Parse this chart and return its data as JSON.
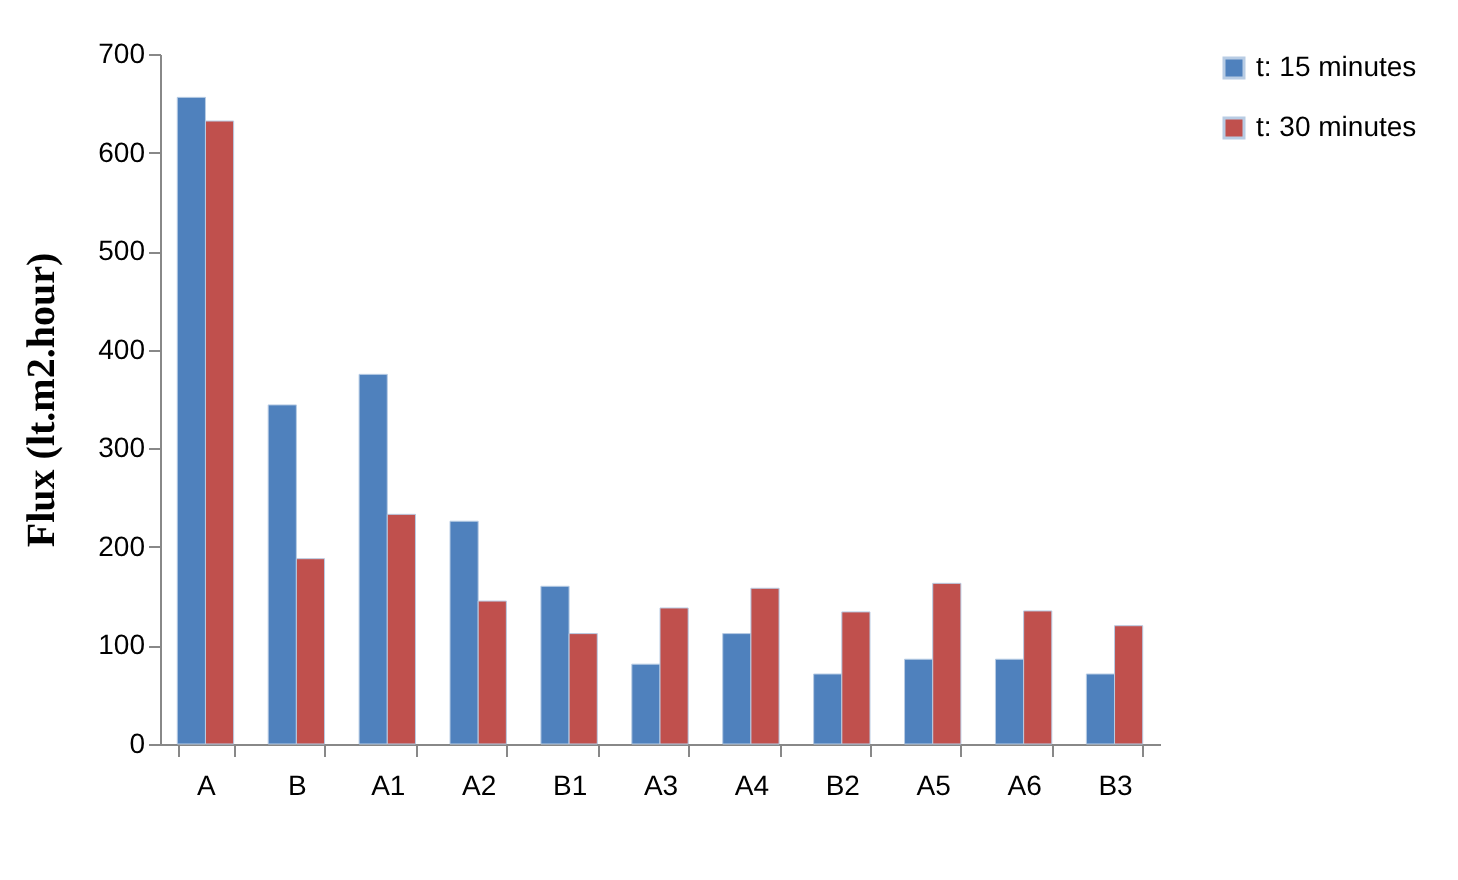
{
  "chart_data": {
    "type": "bar",
    "ylabel": "Flux (lt.m2.hour)",
    "categories": [
      "A",
      "B",
      "A1",
      "A2",
      "B1",
      "A3",
      "A4",
      "B2",
      "A5",
      "A6",
      "B3"
    ],
    "series": [
      {
        "name": "t: 15 minutes",
        "color": "#4f81bd",
        "values": [
          656,
          344,
          375,
          226,
          160,
          81,
          112,
          71,
          86,
          86,
          71
        ]
      },
      {
        "name": "t: 30 minutes",
        "color": "#c0504d",
        "values": [
          632,
          188,
          233,
          145,
          112,
          138,
          158,
          134,
          163,
          135,
          120
        ]
      }
    ],
    "ylim": [
      0,
      700
    ],
    "yticks": [
      0,
      100,
      200,
      300,
      400,
      500,
      600,
      700
    ],
    "grid": false,
    "legend": "right"
  }
}
